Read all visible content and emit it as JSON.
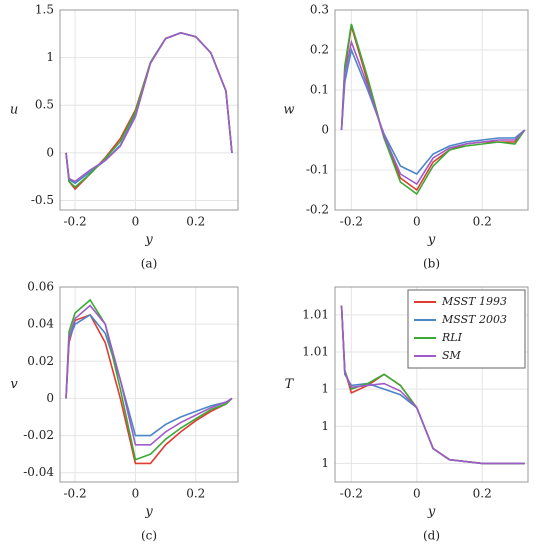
{
  "chart_data": [
    {
      "type": "line",
      "caption": "(a)",
      "xlabel": "y",
      "ylabel": "u",
      "x": [
        -0.23,
        -0.22,
        -0.2,
        -0.15,
        -0.1,
        -0.05,
        0,
        0.05,
        0.1,
        0.15,
        0.2,
        0.25,
        0.3,
        0.32
      ],
      "xlim": [
        -0.25,
        0.34
      ],
      "ylim": [
        -0.6,
        1.5
      ],
      "xticks": [
        -0.2,
        0,
        0.2
      ],
      "yticks": [
        -0.5,
        0,
        0.5,
        1,
        1.5
      ],
      "grid": true,
      "series": [
        {
          "name": "MSST 1993",
          "color": "#e03c31",
          "values": [
            0,
            -0.3,
            -0.38,
            -0.22,
            -0.05,
            0.15,
            0.45,
            0.95,
            1.2,
            1.26,
            1.22,
            1.05,
            0.65,
            0
          ]
        },
        {
          "name": "MSST 2003",
          "color": "#4a86c8",
          "values": [
            0,
            -0.28,
            -0.32,
            -0.2,
            -0.08,
            0.08,
            0.4,
            0.95,
            1.2,
            1.26,
            1.22,
            1.05,
            0.65,
            0
          ]
        },
        {
          "name": "RLI",
          "color": "#3aaa35",
          "values": [
            0,
            -0.3,
            -0.36,
            -0.22,
            -0.06,
            0.12,
            0.43,
            0.95,
            1.2,
            1.26,
            1.22,
            1.05,
            0.65,
            0
          ]
        },
        {
          "name": "SM",
          "color": "#a05bc8",
          "values": [
            0,
            -0.27,
            -0.3,
            -0.18,
            -0.08,
            0.07,
            0.38,
            0.94,
            1.2,
            1.26,
            1.22,
            1.05,
            0.65,
            0
          ]
        }
      ]
    },
    {
      "type": "line",
      "caption": "(b)",
      "xlabel": "y",
      "ylabel": "w",
      "x": [
        -0.23,
        -0.22,
        -0.2,
        -0.15,
        -0.1,
        -0.05,
        0,
        0.05,
        0.1,
        0.15,
        0.2,
        0.25,
        0.3,
        0.33
      ],
      "xlim": [
        -0.25,
        0.34
      ],
      "ylim": [
        -0.2,
        0.3
      ],
      "xticks": [
        -0.2,
        0,
        0.2
      ],
      "yticks": [
        -0.2,
        -0.1,
        0,
        0.1,
        0.2,
        0.3
      ],
      "grid": true,
      "series": [
        {
          "name": "MSST 1993",
          "color": "#e03c31",
          "values": [
            0,
            0.15,
            0.26,
            0.12,
            -0.02,
            -0.12,
            -0.15,
            -0.08,
            -0.05,
            -0.035,
            -0.03,
            -0.03,
            -0.03,
            0
          ]
        },
        {
          "name": "MSST 2003",
          "color": "#4a86c8",
          "values": [
            0,
            0.12,
            0.2,
            0.1,
            -0.01,
            -0.09,
            -0.11,
            -0.06,
            -0.04,
            -0.03,
            -0.025,
            -0.02,
            -0.02,
            0
          ]
        },
        {
          "name": "RLI",
          "color": "#3aaa35",
          "values": [
            0,
            0.16,
            0.265,
            0.13,
            -0.02,
            -0.13,
            -0.16,
            -0.09,
            -0.05,
            -0.04,
            -0.035,
            -0.03,
            -0.035,
            0
          ]
        },
        {
          "name": "SM",
          "color": "#a05bc8",
          "values": [
            0,
            0.14,
            0.22,
            0.11,
            -0.015,
            -0.11,
            -0.135,
            -0.07,
            -0.045,
            -0.035,
            -0.03,
            -0.025,
            -0.025,
            0
          ]
        }
      ]
    },
    {
      "type": "line",
      "caption": "(c)",
      "xlabel": "y",
      "ylabel": "v",
      "x": [
        -0.23,
        -0.22,
        -0.2,
        -0.15,
        -0.1,
        -0.05,
        0,
        0.05,
        0.1,
        0.15,
        0.2,
        0.25,
        0.3,
        0.32
      ],
      "xlim": [
        -0.25,
        0.34
      ],
      "ylim": [
        -0.045,
        0.06
      ],
      "xticks": [
        -0.2,
        0,
        0.2
      ],
      "yticks": [
        -0.04,
        -0.02,
        0,
        0.02,
        0.04,
        0.06
      ],
      "grid": true,
      "series": [
        {
          "name": "MSST 1993",
          "color": "#e03c31",
          "values": [
            0,
            0.03,
            0.042,
            0.045,
            0.03,
            0.0,
            -0.035,
            -0.035,
            -0.025,
            -0.018,
            -0.012,
            -0.007,
            -0.003,
            0
          ]
        },
        {
          "name": "MSST 2003",
          "color": "#4a86c8",
          "values": [
            0,
            0.032,
            0.04,
            0.045,
            0.035,
            0.01,
            -0.02,
            -0.02,
            -0.014,
            -0.01,
            -0.007,
            -0.004,
            -0.002,
            0
          ]
        },
        {
          "name": "RLI",
          "color": "#3aaa35",
          "values": [
            0,
            0.036,
            0.046,
            0.053,
            0.04,
            0.005,
            -0.033,
            -0.03,
            -0.022,
            -0.016,
            -0.011,
            -0.006,
            -0.003,
            0
          ]
        },
        {
          "name": "SM",
          "color": "#a05bc8",
          "values": [
            0,
            0.033,
            0.043,
            0.05,
            0.04,
            0.01,
            -0.025,
            -0.025,
            -0.018,
            -0.013,
            -0.009,
            -0.005,
            -0.002,
            0
          ]
        }
      ]
    },
    {
      "type": "line",
      "caption": "(d)",
      "xlabel": "y",
      "ylabel": "T",
      "legend": "upper right",
      "x": [
        -0.23,
        -0.22,
        -0.2,
        -0.15,
        -0.1,
        -0.05,
        0,
        0.05,
        0.1,
        0.15,
        0.2,
        0.25,
        0.3,
        0.33
      ],
      "xlim": [
        -0.25,
        0.34
      ],
      "ylim": [
        0.999,
        1.0095
      ],
      "xticks": [
        -0.2,
        0,
        0.2
      ],
      "yticks": [
        {
          "value": 1.0,
          "label": "1"
        },
        {
          "value": 1.002,
          "label": "1"
        },
        {
          "value": 1.004,
          "label": "1"
        },
        {
          "value": 1.006,
          "label": "1.01"
        },
        {
          "value": 1.008,
          "label": "1.01"
        }
      ],
      "grid": true,
      "series": [
        {
          "name": "MSST 1993",
          "color": "#e03c31",
          "values": [
            1.0085,
            1.005,
            1.0038,
            1.0042,
            1.0048,
            1.0042,
            1.003,
            1.0008,
            1.0002,
            1.0001,
            1.0,
            1.0,
            1.0,
            1.0
          ]
        },
        {
          "name": "MSST 2003",
          "color": "#4a86c8",
          "values": [
            1.0085,
            1.0048,
            1.0042,
            1.0043,
            1.004,
            1.0037,
            1.003,
            1.0008,
            1.0002,
            1.0001,
            1.0,
            1.0,
            1.0,
            1.0
          ]
        },
        {
          "name": "RLI",
          "color": "#3aaa35",
          "values": [
            1.0085,
            1.005,
            1.004,
            1.0043,
            1.0048,
            1.0042,
            1.003,
            1.0008,
            1.0002,
            1.0001,
            1.0,
            1.0,
            1.0,
            1.0
          ]
        },
        {
          "name": "SM",
          "color": "#a05bc8",
          "values": [
            1.0085,
            1.0049,
            1.0041,
            1.0042,
            1.0043,
            1.0039,
            1.003,
            1.0008,
            1.0002,
            1.0001,
            1.0,
            1.0,
            1.0,
            1.0
          ]
        }
      ]
    }
  ]
}
